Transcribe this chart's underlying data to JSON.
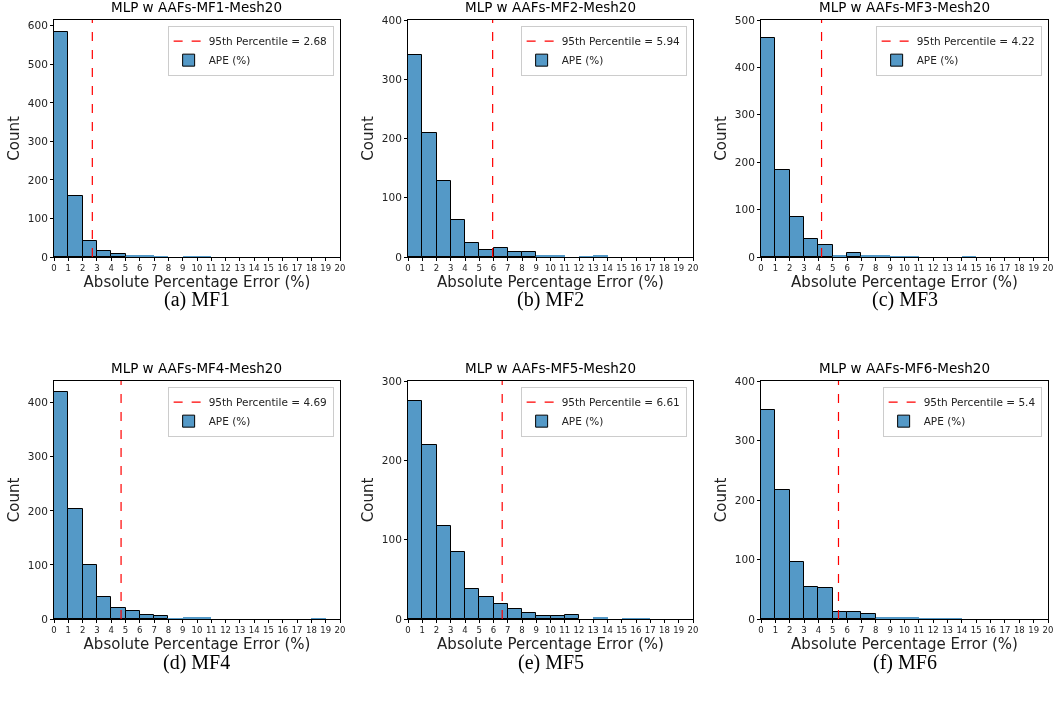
{
  "chart_data": [
    {
      "type": "histogram",
      "title": "MLP w AAFs-MF1-Mesh20",
      "xlabel": "Absolute Percentage Error (%)",
      "ylabel": "Count",
      "annotations": [
        "(a) MF1"
      ],
      "legend": "top right",
      "bins": [
        0,
        1,
        2,
        3,
        4,
        5,
        6,
        7,
        8,
        9,
        10,
        11,
        12,
        13,
        14,
        15,
        16,
        17,
        18,
        19,
        20
      ],
      "xlim": [
        0,
        20
      ],
      "xticks": [
        0,
        1,
        2,
        3,
        4,
        5,
        6,
        7,
        8,
        9,
        10,
        11,
        12,
        13,
        14,
        15,
        16,
        17,
        18,
        19,
        20
      ],
      "ylim": [
        0,
        615
      ],
      "yticks": [
        0,
        100,
        200,
        300,
        400,
        500,
        600
      ],
      "series": [
        {
          "name": "95th Percentile = 2.68",
          "type": "line",
          "color": "#ff0000",
          "line_style": "dashed",
          "x": [
            2.68,
            2.68
          ],
          "values": [
            0,
            615
          ]
        },
        {
          "name": "APE (%)",
          "color": "#5499c7",
          "values": [
            585,
            158,
            42,
            15,
            7,
            3,
            3,
            1,
            0,
            1,
            1,
            0,
            0,
            0,
            0,
            0,
            0,
            0,
            0,
            0
          ]
        }
      ]
    },
    {
      "type": "histogram",
      "title": "MLP w AAFs-MF2-Mesh20",
      "xlabel": "Absolute Percentage Error (%)",
      "ylabel": "Count",
      "annotations": [
        "(b) MF2"
      ],
      "legend": "top right",
      "bins": [
        0,
        1,
        2,
        3,
        4,
        5,
        6,
        7,
        8,
        9,
        10,
        11,
        12,
        13,
        14,
        15,
        16,
        17,
        18,
        19,
        20
      ],
      "xlim": [
        0,
        20
      ],
      "xticks": [
        0,
        1,
        2,
        3,
        4,
        5,
        6,
        7,
        8,
        9,
        10,
        11,
        12,
        13,
        14,
        15,
        16,
        17,
        18,
        19,
        20
      ],
      "ylim": [
        0,
        400
      ],
      "yticks": [
        0,
        100,
        200,
        300,
        400
      ],
      "series": [
        {
          "name": "95th Percentile = 5.94",
          "type": "line",
          "color": "#ff0000",
          "line_style": "dashed",
          "x": [
            5.94,
            5.94
          ],
          "values": [
            0,
            400
          ]
        },
        {
          "name": "APE (%)",
          "color": "#5499c7",
          "values": [
            341,
            209,
            128,
            63,
            24,
            12,
            15,
            8,
            8,
            3,
            3,
            0,
            1,
            2,
            0,
            0,
            0,
            0,
            0,
            0
          ]
        }
      ]
    },
    {
      "type": "histogram",
      "title": "MLP w AAFs-MF3-Mesh20",
      "xlabel": "Absolute Percentage Error (%)",
      "ylabel": "Count",
      "annotations": [
        "(c) MF3"
      ],
      "legend": "top right",
      "bins": [
        0,
        1,
        2,
        3,
        4,
        5,
        6,
        7,
        8,
        9,
        10,
        11,
        12,
        13,
        14,
        15,
        16,
        17,
        18,
        19,
        20
      ],
      "xlim": [
        0,
        20
      ],
      "xticks": [
        0,
        1,
        2,
        3,
        4,
        5,
        6,
        7,
        8,
        9,
        10,
        11,
        12,
        13,
        14,
        15,
        16,
        17,
        18,
        19,
        20
      ],
      "ylim": [
        0,
        500
      ],
      "yticks": [
        0,
        100,
        200,
        300,
        400,
        500
      ],
      "series": [
        {
          "name": "95th Percentile = 4.22",
          "type": "line",
          "color": "#ff0000",
          "line_style": "dashed",
          "x": [
            4.22,
            4.22
          ],
          "values": [
            0,
            500
          ]
        },
        {
          "name": "APE (%)",
          "color": "#5499c7",
          "values": [
            462,
            183,
            84,
            39,
            25,
            5,
            8,
            5,
            3,
            1,
            1,
            0,
            0,
            0,
            1,
            0,
            0,
            0,
            0,
            0
          ]
        }
      ]
    },
    {
      "type": "histogram",
      "title": "MLP w AAFs-MF4-Mesh20",
      "xlabel": "Absolute Percentage Error (%)",
      "ylabel": "Count",
      "annotations": [
        "(d) MF4"
      ],
      "legend": "top right",
      "bins": [
        0,
        1,
        2,
        3,
        4,
        5,
        6,
        7,
        8,
        9,
        10,
        11,
        12,
        13,
        14,
        15,
        16,
        17,
        18,
        19,
        20
      ],
      "xlim": [
        0,
        20
      ],
      "xticks": [
        0,
        1,
        2,
        3,
        4,
        5,
        6,
        7,
        8,
        9,
        10,
        11,
        12,
        13,
        14,
        15,
        16,
        17,
        18,
        19,
        20
      ],
      "ylim": [
        0,
        440
      ],
      "yticks": [
        0,
        100,
        200,
        300,
        400
      ],
      "series": [
        {
          "name": "95th Percentile = 4.69",
          "type": "line",
          "color": "#ff0000",
          "line_style": "dashed",
          "x": [
            4.69,
            4.69
          ],
          "values": [
            0,
            440
          ]
        },
        {
          "name": "APE (%)",
          "color": "#5499c7",
          "values": [
            419,
            204,
            99,
            41,
            20,
            15,
            8,
            5,
            1,
            2,
            2,
            0,
            0,
            0,
            0,
            0,
            0,
            0,
            1,
            0
          ]
        }
      ]
    },
    {
      "type": "histogram",
      "title": "MLP w AAFs-MF5-Mesh20",
      "xlabel": "Absolute Percentage Error (%)",
      "ylabel": "Count",
      "annotations": [
        "(e) MF5"
      ],
      "legend": "top right",
      "bins": [
        0,
        1,
        2,
        3,
        4,
        5,
        6,
        7,
        8,
        9,
        10,
        11,
        12,
        13,
        14,
        15,
        16,
        17,
        18,
        19,
        20
      ],
      "xlim": [
        0,
        20
      ],
      "xticks": [
        0,
        1,
        2,
        3,
        4,
        5,
        6,
        7,
        8,
        9,
        10,
        11,
        12,
        13,
        14,
        15,
        16,
        17,
        18,
        19,
        20
      ],
      "ylim": [
        0,
        300
      ],
      "yticks": [
        0,
        100,
        200,
        300
      ],
      "series": [
        {
          "name": "95th Percentile = 6.61",
          "type": "line",
          "color": "#ff0000",
          "line_style": "dashed",
          "x": [
            6.61,
            6.61
          ],
          "values": [
            0,
            300
          ]
        },
        {
          "name": "APE (%)",
          "color": "#5499c7",
          "values": [
            275,
            219,
            117,
            84,
            38,
            28,
            19,
            13,
            7,
            4,
            4,
            5,
            0,
            2,
            0,
            1,
            1,
            0,
            0,
            0
          ]
        }
      ]
    },
    {
      "type": "histogram",
      "title": "MLP w AAFs-MF6-Mesh20",
      "xlabel": "Absolute Percentage Error (%)",
      "ylabel": "Count",
      "annotations": [
        "(f) MF6"
      ],
      "legend": "top right",
      "bins": [
        0,
        1,
        2,
        3,
        4,
        5,
        6,
        7,
        8,
        9,
        10,
        11,
        12,
        13,
        14,
        15,
        16,
        17,
        18,
        19,
        20
      ],
      "xlim": [
        0,
        20
      ],
      "xticks": [
        0,
        1,
        2,
        3,
        4,
        5,
        6,
        7,
        8,
        9,
        10,
        11,
        12,
        13,
        14,
        15,
        16,
        17,
        18,
        19,
        20
      ],
      "ylim": [
        0,
        400
      ],
      "yticks": [
        0,
        100,
        200,
        300,
        400
      ],
      "series": [
        {
          "name": "95th Percentile = 5.4",
          "type": "line",
          "color": "#ff0000",
          "line_style": "dashed",
          "x": [
            5.4,
            5.4
          ],
          "values": [
            0,
            400
          ]
        },
        {
          "name": "APE (%)",
          "color": "#5499c7",
          "values": [
            352,
            216,
            96,
            54,
            52,
            12,
            12,
            9,
            4,
            4,
            2,
            1,
            1,
            1,
            0,
            0,
            0,
            0,
            0,
            0
          ]
        }
      ]
    }
  ]
}
